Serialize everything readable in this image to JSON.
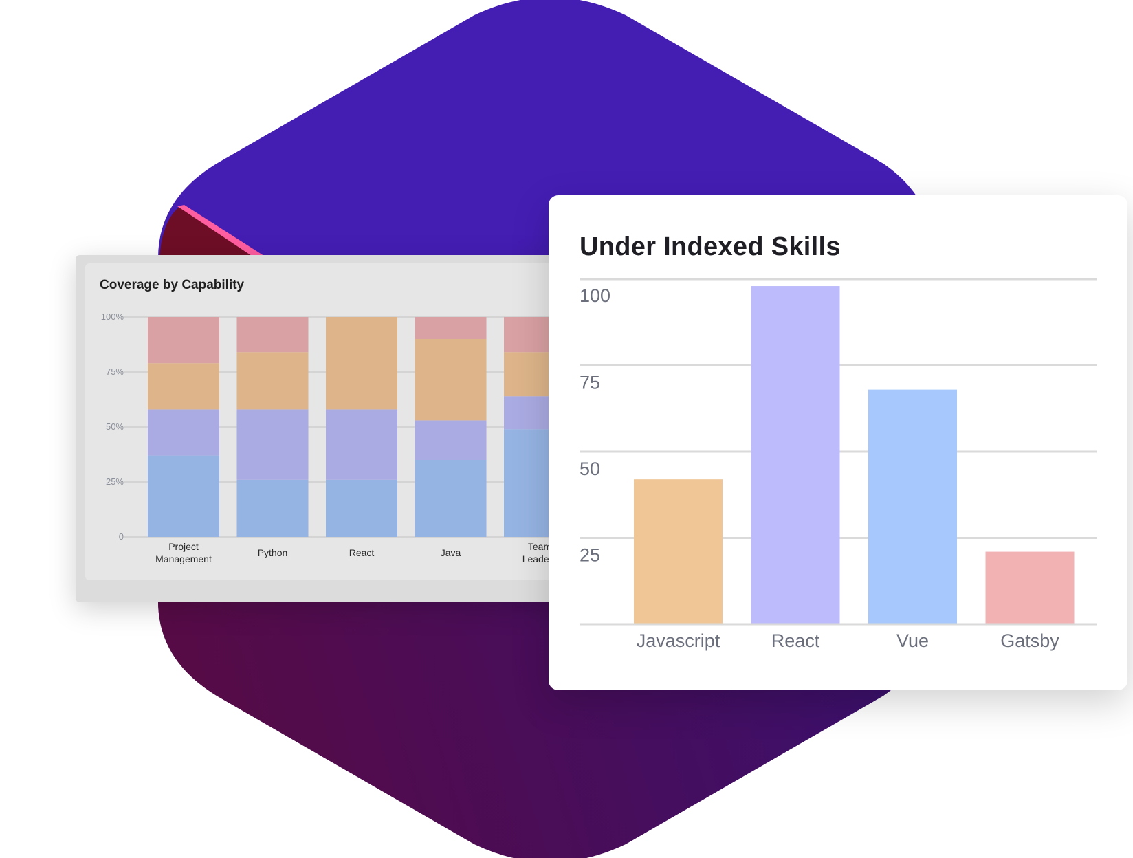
{
  "colors": {
    "hex_top": "#441db3",
    "hex_bottom": "#4e0b48",
    "stack_blue": "#96b4e3",
    "stack_purple": "#ababe3",
    "stack_orange": "#deb58a",
    "stack_pink": "#d9a1a3",
    "bar_orange": "#f0c696",
    "bar_purple": "#bdbbfb",
    "bar_blue": "#a6c8fd",
    "bar_pink": "#f2b1b3"
  },
  "coverage": {
    "title": "Coverage by Capability",
    "y_ticks": [
      "100%",
      "75%",
      "50%",
      "25%",
      "0"
    ],
    "categories": [
      [
        "Project",
        "Management"
      ],
      [
        "Python"
      ],
      [
        "React"
      ],
      [
        "Java"
      ],
      [
        "Team",
        "Leaders"
      ]
    ]
  },
  "skills": {
    "title": "Under Indexed Skills",
    "y_ticks": [
      "100",
      "75",
      "50",
      "25"
    ],
    "categories": [
      "Javascript",
      "React",
      "Vue",
      "Gatsby"
    ]
  },
  "chart_data": [
    {
      "type": "bar",
      "stacked": true,
      "title": "Coverage by Capability",
      "categories": [
        "Project Management",
        "Python",
        "React",
        "Java",
        "Team Leaders"
      ],
      "ylim": [
        0,
        100
      ],
      "y_unit": "%",
      "series": [
        {
          "color": "#96b4e3",
          "values": [
            37,
            26,
            26,
            35,
            49
          ]
        },
        {
          "color": "#ababe3",
          "values": [
            21,
            32,
            32,
            18,
            15
          ]
        },
        {
          "color": "#deb58a",
          "values": [
            21,
            26,
            42,
            37,
            20
          ]
        },
        {
          "color": "#d9a1a3",
          "values": [
            21,
            16,
            0,
            10,
            16
          ]
        }
      ],
      "grid": true
    },
    {
      "type": "bar",
      "title": "Under Indexed Skills",
      "categories": [
        "Javascript",
        "React",
        "Vue",
        "Gatsby"
      ],
      "values": [
        42,
        98,
        68,
        21
      ],
      "colors": [
        "#f0c696",
        "#bdbbfb",
        "#a6c8fd",
        "#f2b1b3"
      ],
      "ylim": [
        0,
        100
      ],
      "yticks": [
        25,
        50,
        75,
        100
      ],
      "grid": true
    }
  ]
}
